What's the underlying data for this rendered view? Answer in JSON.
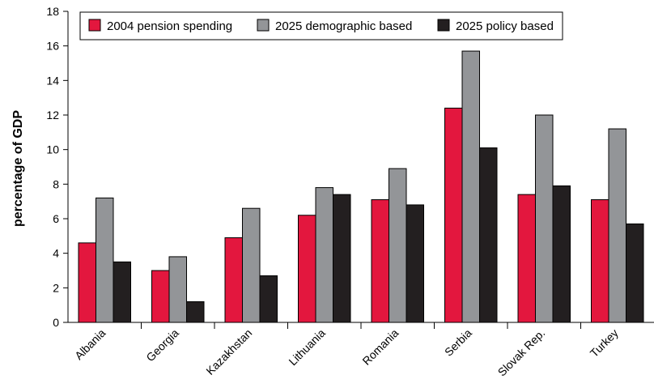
{
  "chart_data": {
    "type": "bar",
    "title": "",
    "xlabel": "",
    "ylabel": "percentage of GDP",
    "ylim": [
      0,
      18
    ],
    "yticks": [
      0,
      2,
      4,
      6,
      8,
      10,
      12,
      14,
      16,
      18
    ],
    "grid": false,
    "legend_position": "top",
    "categories": [
      "Albania",
      "Georgia",
      "Kazakhstan",
      "Lithuania",
      "Romania",
      "Serbia",
      "Slovak Rep.",
      "Turkey"
    ],
    "series": [
      {
        "name": "2004 pension spending",
        "color": "#e3173e",
        "values": [
          4.6,
          3.0,
          4.9,
          6.2,
          7.1,
          12.4,
          7.4,
          7.1
        ]
      },
      {
        "name": "2025 demographic based",
        "color": "#939598",
        "values": [
          7.2,
          3.8,
          6.6,
          7.8,
          8.9,
          15.7,
          12.0,
          11.2
        ]
      },
      {
        "name": "2025 policy based",
        "color": "#231f20",
        "values": [
          3.5,
          1.2,
          2.7,
          7.4,
          6.8,
          10.1,
          7.9,
          5.7
        ]
      }
    ]
  }
}
